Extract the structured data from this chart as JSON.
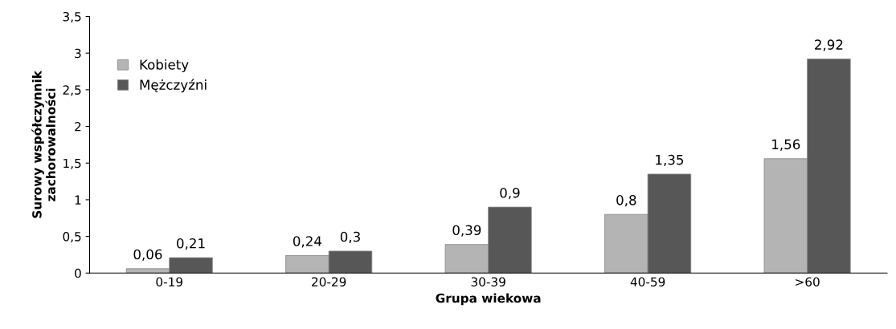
{
  "chart_data": {
    "type": "bar",
    "xlabel": "Grupa wiekowa",
    "ylabel": "Surowy współczynnik\nzachorowalności",
    "categories": [
      "0-19",
      "20-29",
      "30-39",
      "40-59",
      ">60"
    ],
    "series": [
      {
        "name": "Kobiety",
        "color": "#b4b4b4",
        "values": [
          0.06,
          0.24,
          0.39,
          0.8,
          1.56
        ],
        "value_labels": [
          "0,06",
          "0,24",
          "0,39",
          "0,8",
          "1,56"
        ]
      },
      {
        "name": "Mężczyźni",
        "color": "#575757",
        "values": [
          0.21,
          0.3,
          0.9,
          1.35,
          2.92
        ],
        "value_labels": [
          "0,21",
          "0,3",
          "0,9",
          "1,35",
          "2,92"
        ]
      }
    ],
    "ylim": [
      0,
      3.5
    ],
    "yticks": [
      0,
      {
        "value": 0.5,
        "label": "0,5"
      },
      1,
      {
        "value": 1.5,
        "label": "1,5"
      },
      2,
      {
        "value": 2.5,
        "label": "2,5"
      },
      3,
      {
        "value": 3.5,
        "label": "3,5"
      }
    ],
    "grid": false,
    "legend": "top left"
  }
}
